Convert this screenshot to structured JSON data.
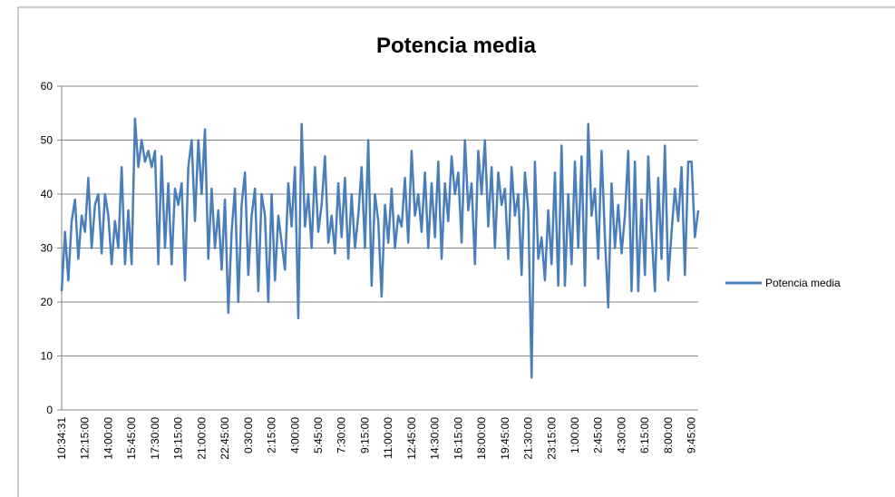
{
  "chart_data": {
    "type": "line",
    "title": "Potencia media",
    "categories": [
      "10:34:31",
      null,
      null,
      null,
      null,
      null,
      null,
      "12:15:00",
      null,
      null,
      null,
      null,
      null,
      null,
      "14:00:00",
      null,
      null,
      null,
      null,
      null,
      null,
      "15:45:00",
      null,
      null,
      null,
      null,
      null,
      null,
      "17:30:00",
      null,
      null,
      null,
      null,
      null,
      null,
      "19:15:00",
      null,
      null,
      null,
      null,
      null,
      null,
      "21:00:00",
      null,
      null,
      null,
      null,
      null,
      null,
      "22:45:00",
      null,
      null,
      null,
      null,
      null,
      null,
      "0:30:00",
      null,
      null,
      null,
      null,
      null,
      null,
      "2:15:00",
      null,
      null,
      null,
      null,
      null,
      null,
      "4:00:00",
      null,
      null,
      null,
      null,
      null,
      null,
      "5:45:00",
      null,
      null,
      null,
      null,
      null,
      null,
      "7:30:00",
      null,
      null,
      null,
      null,
      null,
      null,
      "9:15:00",
      null,
      null,
      null,
      null,
      null,
      null,
      "11:00:00",
      null,
      null,
      null,
      null,
      null,
      null,
      "12:45:00",
      null,
      null,
      null,
      null,
      null,
      null,
      "14:30:00",
      null,
      null,
      null,
      null,
      null,
      null,
      "16:15:00",
      null,
      null,
      null,
      null,
      null,
      null,
      "18:00:00",
      null,
      null,
      null,
      null,
      null,
      null,
      "19:45:00",
      null,
      null,
      null,
      null,
      null,
      null,
      "21:30:00",
      null,
      null,
      null,
      null,
      null,
      null,
      "23:15:00",
      null,
      null,
      null,
      null,
      null,
      null,
      "1:00:00",
      null,
      null,
      null,
      null,
      null,
      null,
      "2:45:00",
      null,
      null,
      null,
      null,
      null,
      null,
      "4:30:00",
      null,
      null,
      null,
      null,
      null,
      null,
      "6:15:00",
      null,
      null,
      null,
      null,
      null,
      null,
      "8:00:00",
      null,
      null,
      null,
      null,
      null,
      null,
      "9:45:00",
      null,
      null
    ],
    "series": [
      {
        "name": "Potencia media",
        "color": "#4a7ebb",
        "values": [
          22,
          33,
          24,
          35,
          39,
          28,
          36,
          33,
          43,
          30,
          38,
          40,
          29,
          40,
          36,
          27,
          35,
          30,
          45,
          27,
          37,
          27,
          54,
          45,
          50,
          46,
          48,
          45,
          48,
          27,
          47,
          30,
          42,
          27,
          41,
          38,
          42,
          24,
          45,
          50,
          35,
          50,
          40,
          52,
          28,
          41,
          30,
          37,
          26,
          39,
          18,
          33,
          41,
          20,
          38,
          44,
          25,
          36,
          41,
          22,
          40,
          36,
          20,
          40,
          24,
          36,
          31,
          26,
          42,
          34,
          45,
          17,
          53,
          34,
          40,
          30,
          45,
          33,
          38,
          47,
          31,
          36,
          29,
          42,
          32,
          43,
          28,
          40,
          30,
          36,
          45,
          30,
          50,
          23,
          40,
          35,
          21,
          38,
          31,
          41,
          30,
          36,
          34,
          43,
          31,
          48,
          36,
          40,
          33,
          44,
          30,
          42,
          32,
          46,
          28,
          42,
          35,
          47,
          40,
          44,
          31,
          50,
          37,
          42,
          27,
          48,
          40,
          50,
          34,
          45,
          30,
          44,
          38,
          41,
          28,
          45,
          36,
          40,
          25,
          44,
          37,
          6,
          46,
          28,
          32,
          24,
          37,
          27,
          44,
          23,
          49,
          23,
          40,
          27,
          46,
          30,
          47,
          23,
          53,
          36,
          41,
          28,
          48,
          32,
          19,
          42,
          30,
          38,
          29,
          36,
          48,
          22,
          46,
          22,
          39,
          25,
          47,
          33,
          22,
          43,
          28,
          49,
          24,
          33,
          41,
          35,
          45,
          25,
          46,
          46,
          32,
          37
        ]
      }
    ],
    "ylim": [
      0,
      60
    ],
    "yticks": [
      0,
      10,
      20,
      30,
      40,
      50,
      60
    ],
    "grid": true,
    "legend": "right"
  }
}
